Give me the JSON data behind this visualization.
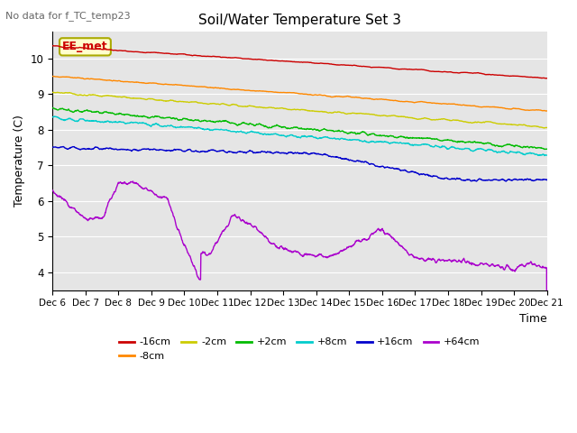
{
  "title": "Soil/Water Temperature Set 3",
  "subtitle": "No data for f_TC_temp23",
  "xlabel": "Time",
  "ylabel": "Temperature (C)",
  "ylim": [
    3.5,
    10.75
  ],
  "legend_labels": [
    "-16cm",
    "-8cm",
    "-2cm",
    "+2cm",
    "+8cm",
    "+16cm",
    "+64cm"
  ],
  "legend_colors": [
    "#cc0000",
    "#ff8800",
    "#cccc00",
    "#00bb00",
    "#00cccc",
    "#0000cc",
    "#aa00cc"
  ],
  "bg_color": "#e5e5e5",
  "x_tick_labels": [
    "Dec 6",
    "Dec 7",
    "Dec 8",
    "Dec 9",
    "Dec 10",
    "Dec 11",
    "Dec 12",
    "Dec 13",
    "Dec 14",
    "Dec 15",
    "Dec 16",
    "Dec 17",
    "Dec 18",
    "Dec 19",
    "Dec 20",
    "Dec 21"
  ],
  "annotation_box": "EE_met",
  "annotation_box_facecolor": "#ffffcc",
  "annotation_box_edgecolor": "#aaaa00",
  "annotation_box_text_color": "#cc0000",
  "grid_color": "#ffffff",
  "linewidth": 1.0
}
